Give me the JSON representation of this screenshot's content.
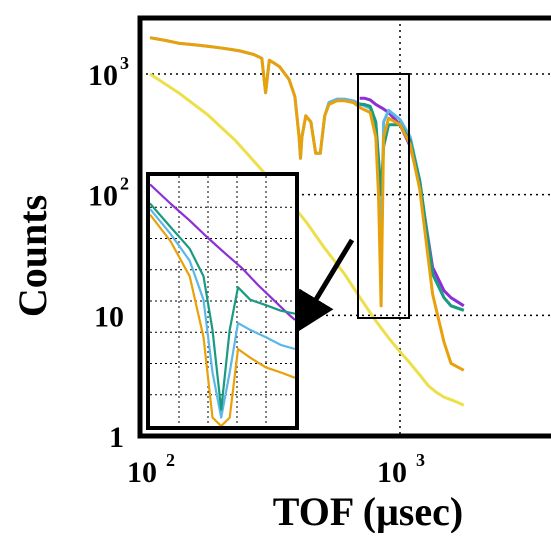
{
  "chart_data": {
    "type": "line",
    "xlabel": "TOF (μsec)",
    "ylabel": "Counts",
    "x_scale": "log",
    "y_scale": "log",
    "xlim": [
      100,
      1800
    ],
    "ylim": [
      1,
      2500
    ],
    "grid": true,
    "x_ticks": [
      {
        "value": 100,
        "base": "10",
        "exp": "2"
      },
      {
        "value": 1000,
        "base": "10",
        "exp": "3"
      }
    ],
    "y_ticks": [
      {
        "value": 1,
        "label": "1"
      },
      {
        "value": 10,
        "label": "10"
      },
      {
        "value": 100,
        "base": "10",
        "exp": "2"
      },
      {
        "value": 1000,
        "base": "10",
        "exp": "3"
      }
    ],
    "colors": {
      "yellow": "#ece04a",
      "orange": "#e8a10a",
      "cyan": "#5bb8e6",
      "purple": "#8c2fd6",
      "green": "#1a9a80",
      "arrow": "#000000"
    },
    "series": [
      {
        "color": "yellow",
        "x": [
          100,
          130,
          170,
          220,
          280,
          350,
          420,
          500,
          600,
          700,
          800,
          900,
          1000,
          1100,
          1200,
          1300,
          1400,
          1500,
          1600,
          1700,
          1800
        ],
        "y": [
          1000,
          700,
          460,
          280,
          160,
          95,
          60,
          36,
          22,
          13.5,
          9,
          6.5,
          5,
          4,
          3.2,
          2.6,
          2.3,
          2.1,
          2.0,
          1.9,
          1.8
        ]
      },
      {
        "color": "purple",
        "x": [
          690,
          720,
          760,
          800,
          850,
          900,
          1000,
          1100,
          1200,
          1350,
          1500,
          1600,
          1800
        ],
        "y": [
          630,
          630,
          610,
          560,
          520,
          480,
          380,
          250,
          120,
          25,
          16,
          14,
          12
        ]
      },
      {
        "color": "cyan",
        "x": [
          100,
          115,
          130,
          150,
          170,
          190,
          210,
          230,
          260,
          280,
          290,
          300,
          310,
          330,
          360,
          380,
          395,
          400,
          405,
          420,
          440,
          460,
          480,
          500,
          520,
          560,
          600,
          650,
          700,
          760,
          800,
          820,
          840,
          860,
          900,
          1000,
          1100,
          1200,
          1350,
          1500,
          1600,
          1800
        ],
        "y": [
          2000,
          1900,
          1800,
          1750,
          1700,
          1650,
          1600,
          1550,
          1450,
          1350,
          700,
          1300,
          1250,
          1150,
          900,
          650,
          300,
          200,
          300,
          450,
          400,
          220,
          220,
          450,
          580,
          620,
          620,
          600,
          560,
          520,
          380,
          180,
          20,
          400,
          500,
          420,
          300,
          130,
          22,
          14,
          12,
          11
        ]
      },
      {
        "color": "green",
        "x": [
          690,
          720,
          760,
          800,
          820,
          840,
          860,
          900,
          1000,
          1100,
          1200,
          1350,
          1500,
          1600,
          1800
        ],
        "y": [
          560,
          560,
          540,
          400,
          200,
          100,
          250,
          380,
          380,
          280,
          130,
          22,
          14,
          12,
          11
        ]
      },
      {
        "color": "orange",
        "x": [
          100,
          115,
          130,
          150,
          170,
          190,
          210,
          230,
          260,
          280,
          290,
          300,
          310,
          330,
          360,
          380,
          395,
          400,
          405,
          420,
          440,
          460,
          480,
          500,
          520,
          560,
          600,
          650,
          700,
          760,
          800,
          820,
          840,
          860,
          900,
          1000,
          1100,
          1200,
          1350,
          1500,
          1600,
          1800
        ],
        "y": [
          2000,
          1900,
          1800,
          1750,
          1700,
          1650,
          1600,
          1550,
          1450,
          1350,
          700,
          1300,
          1250,
          1150,
          900,
          650,
          300,
          200,
          300,
          450,
          400,
          220,
          220,
          450,
          560,
          600,
          600,
          580,
          520,
          480,
          300,
          100,
          12,
          300,
          430,
          380,
          260,
          110,
          15,
          6,
          4,
          3.5
        ]
      }
    ],
    "inset": {
      "xlim": [
        690,
        1030
      ],
      "ylim": [
        12,
        130
      ],
      "x_scale": "log",
      "y_scale": "log",
      "grid": true,
      "series": [
        {
          "color": "purple",
          "x": [
            690,
            730,
            770,
            810,
            850,
            890,
            930,
            970,
            1010,
            1030
          ],
          "y": [
            120,
            100,
            85,
            72,
            62,
            54,
            46,
            40,
            35,
            33
          ]
        },
        {
          "color": "cyan",
          "x": [
            690,
            730,
            770,
            800,
            820,
            840,
            860,
            880,
            910,
            950,
            990,
            1030
          ],
          "y": [
            95,
            75,
            58,
            40,
            20,
            13,
            20,
            32,
            30,
            28,
            26,
            25
          ]
        },
        {
          "color": "green",
          "x": [
            690,
            730,
            770,
            800,
            820,
            840,
            860,
            880,
            910,
            950,
            990,
            1030
          ],
          "y": [
            100,
            80,
            65,
            50,
            30,
            14,
            30,
            45,
            40,
            38,
            36,
            35
          ]
        },
        {
          "color": "orange",
          "x": [
            690,
            730,
            770,
            800,
            820,
            840,
            860,
            880,
            910,
            950,
            990,
            1030
          ],
          "y": [
            90,
            70,
            50,
            28,
            13,
            12,
            13,
            25,
            23,
            21,
            20,
            19
          ]
        }
      ]
    }
  }
}
